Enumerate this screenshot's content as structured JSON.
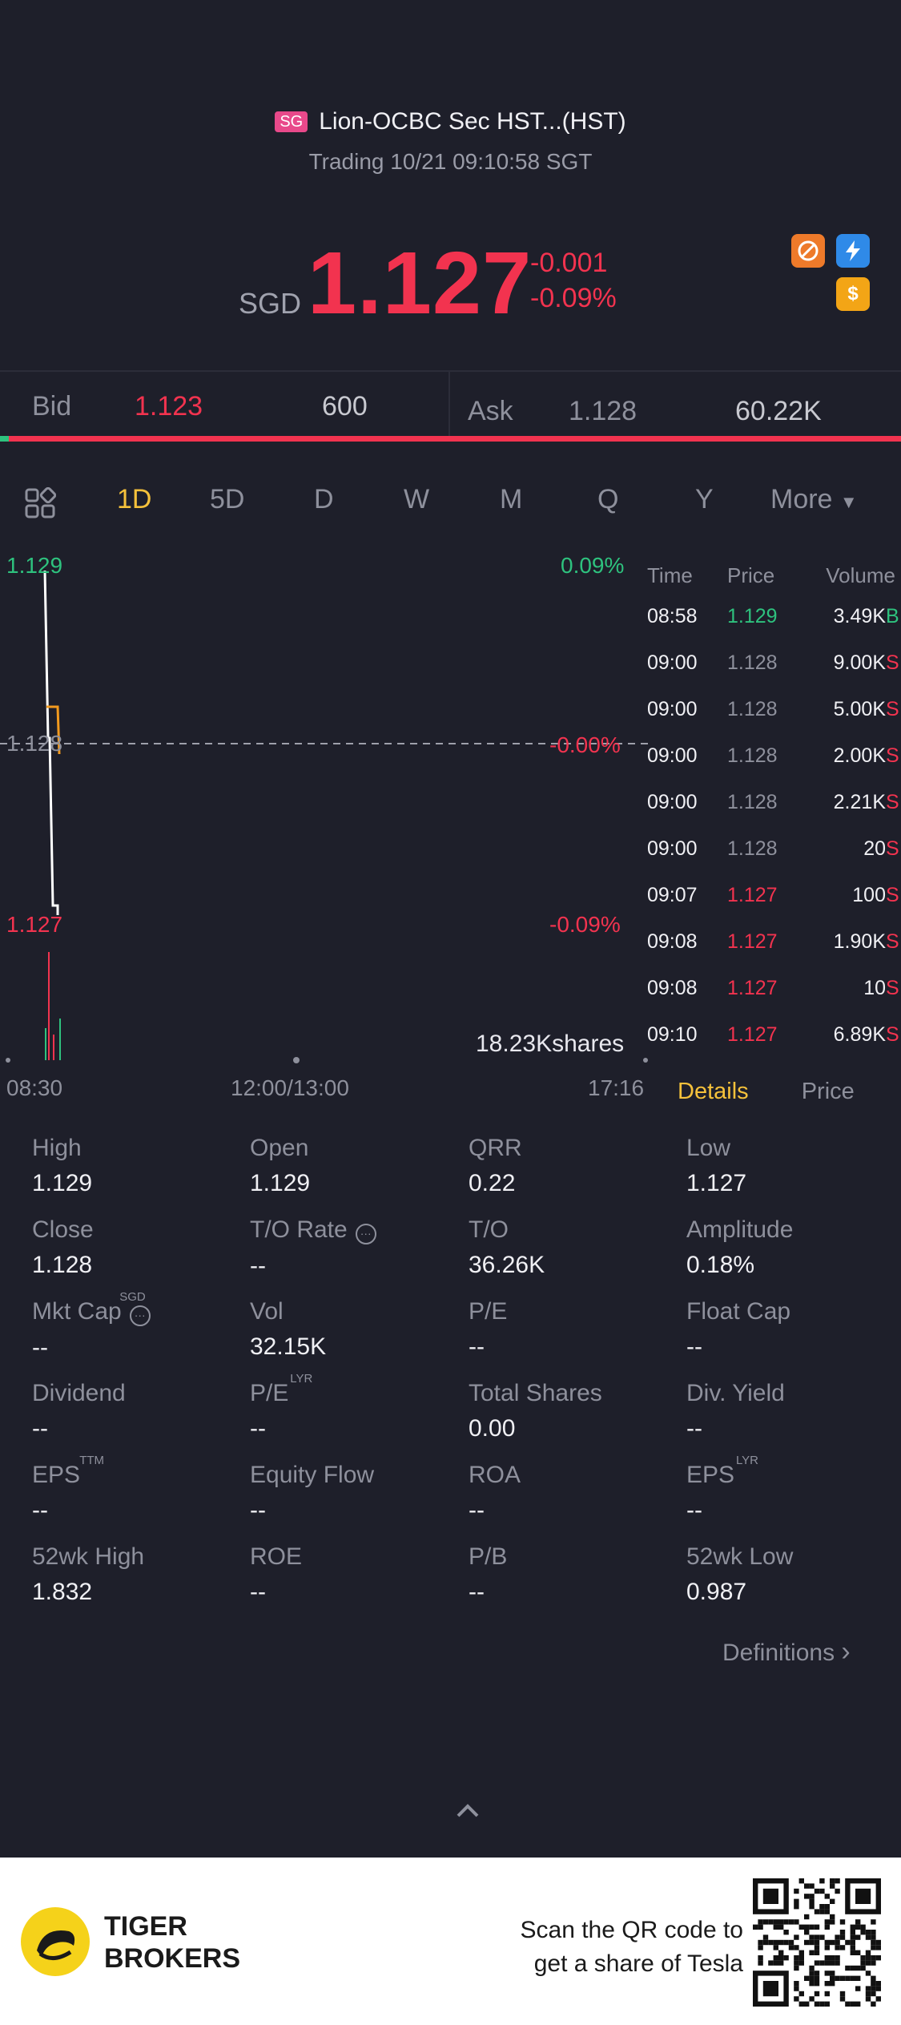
{
  "header": {
    "market_badge": "SG",
    "stock_name": "Lion-OCBC Sec HST...(HST)",
    "trading_status": "Trading 10/21 09:10:58 SGT"
  },
  "quote": {
    "currency": "SGD",
    "price": "1.127",
    "change": "-0.001",
    "change_pct": "-0.09%"
  },
  "bid_ask": {
    "bid_label": "Bid",
    "bid_price": "1.123",
    "bid_size": "600",
    "ask_label": "Ask",
    "ask_price": "1.128",
    "ask_size": "60.22K",
    "bid_share": 0.01
  },
  "period_tabs": {
    "items": [
      "1D",
      "5D",
      "D",
      "W",
      "M",
      "Q",
      "Y"
    ],
    "more": "More",
    "active": "1D"
  },
  "chart": {
    "high_label": "1.129",
    "high_pct": "0.09%",
    "prev_close_label": "1.128",
    "prev_close_pct": "-0.00%",
    "low_label": "1.127",
    "low_pct": "-0.09%",
    "volume_label": "18.23Kshares",
    "x_start": "08:30",
    "x_mid": "12:00/13:00",
    "x_end": "17:16"
  },
  "chart_data": {
    "type": "line",
    "x": [
      "08:58",
      "09:00",
      "09:00",
      "09:07",
      "09:08",
      "09:10"
    ],
    "series": [
      {
        "values": [
          1.129,
          1.128,
          1.128,
          1.127,
          1.127,
          1.127
        ]
      }
    ],
    "ylim": [
      1.127,
      1.129
    ],
    "xlim": [
      "08:30",
      "17:16"
    ]
  },
  "ticks": {
    "headers": {
      "time": "Time",
      "price": "Price",
      "volume": "Volume"
    },
    "rows": [
      {
        "time": "08:58",
        "price": "1.129",
        "volume": "3.49K",
        "side": "B",
        "dir": "up"
      },
      {
        "time": "09:00",
        "price": "1.128",
        "volume": "9.00K",
        "side": "S",
        "dir": "flat"
      },
      {
        "time": "09:00",
        "price": "1.128",
        "volume": "5.00K",
        "side": "S",
        "dir": "flat"
      },
      {
        "time": "09:00",
        "price": "1.128",
        "volume": "2.00K",
        "side": "S",
        "dir": "flat"
      },
      {
        "time": "09:00",
        "price": "1.128",
        "volume": "2.21K",
        "side": "S",
        "dir": "flat"
      },
      {
        "time": "09:00",
        "price": "1.128",
        "volume": "20",
        "side": "S",
        "dir": "flat"
      },
      {
        "time": "09:07",
        "price": "1.127",
        "volume": "100",
        "side": "S",
        "dir": "down"
      },
      {
        "time": "09:08",
        "price": "1.127",
        "volume": "1.90K",
        "side": "S",
        "dir": "down"
      },
      {
        "time": "09:08",
        "price": "1.127",
        "volume": "10",
        "side": "S",
        "dir": "down"
      },
      {
        "time": "09:10",
        "price": "1.127",
        "volume": "6.89K",
        "side": "S",
        "dir": "down"
      }
    ]
  },
  "detail_tabs": {
    "details": "Details",
    "price": "Price"
  },
  "stats": [
    {
      "label": "High",
      "value": "1.129"
    },
    {
      "label": "Open",
      "value": "1.129"
    },
    {
      "label": "QRR",
      "value": "0.22"
    },
    {
      "label": "Low",
      "value": "1.127"
    },
    {
      "label": "Close",
      "value": "1.128"
    },
    {
      "label": "T/O Rate",
      "value": "--",
      "info": true
    },
    {
      "label": "T/O",
      "value": "36.26K"
    },
    {
      "label": "Amplitude",
      "value": "0.18%"
    },
    {
      "label": "Mkt Cap",
      "value": "--",
      "sup": "SGD",
      "info": true
    },
    {
      "label": "Vol",
      "value": "32.15K"
    },
    {
      "label": "P/E",
      "value": "--"
    },
    {
      "label": "Float Cap",
      "value": "--"
    },
    {
      "label": "Dividend",
      "value": "--"
    },
    {
      "label": "P/E",
      "value": "--",
      "sup": "LYR"
    },
    {
      "label": "Total Shares",
      "value": "0.00"
    },
    {
      "label": "Div. Yield",
      "value": "--"
    },
    {
      "label": "EPS",
      "value": "--",
      "sup": "TTM"
    },
    {
      "label": "Equity Flow",
      "value": "--"
    },
    {
      "label": "ROA",
      "value": "--"
    },
    {
      "label": "EPS",
      "value": "--",
      "sup": "LYR"
    },
    {
      "label": "52wk High",
      "value": "1.832"
    },
    {
      "label": "ROE",
      "value": "--"
    },
    {
      "label": "P/B",
      "value": "--"
    },
    {
      "label": "52wk Low",
      "value": "0.987"
    }
  ],
  "definitions_link": "Definitions",
  "footer": {
    "brand_line1": "TIGER",
    "brand_line2": "BROKERS",
    "scan_line1": "Scan the QR code to",
    "scan_line2": "get a share of Tesla"
  },
  "colors": {
    "up": "#2ec27e",
    "down": "#f2334f",
    "accent": "#f5c13b",
    "background": "#1e1f2a"
  }
}
